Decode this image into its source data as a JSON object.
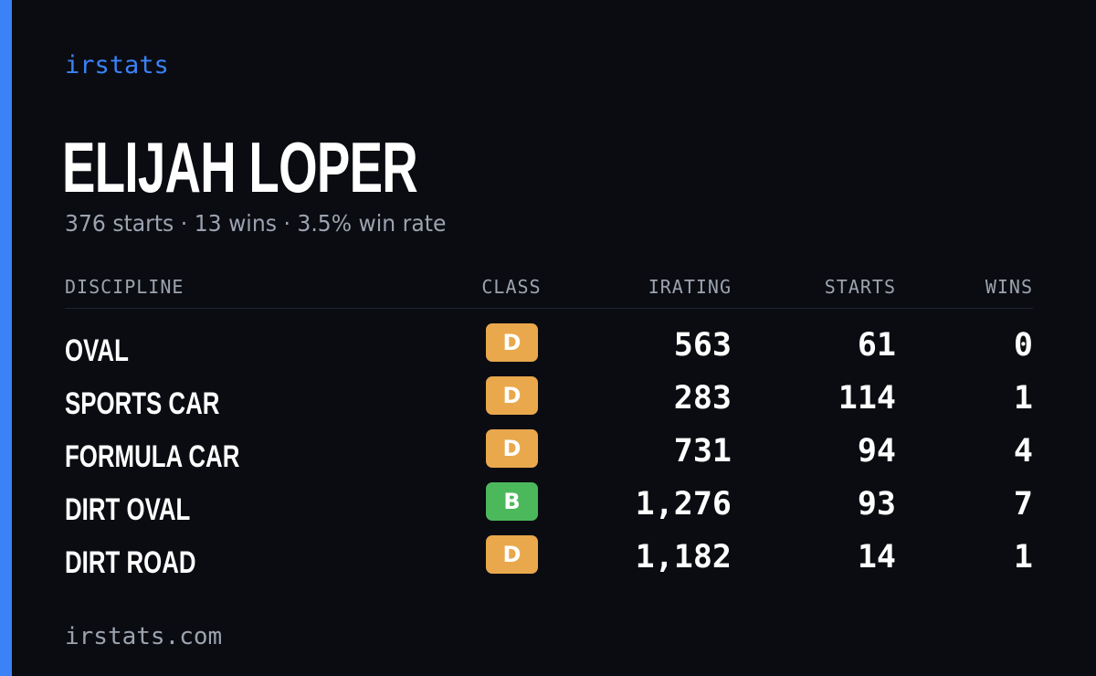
{
  "brand": "irstats",
  "driver": {
    "name": "ELIJAH LOPER",
    "summary": "376 starts · 13 wins · 3.5% win rate"
  },
  "table": {
    "headers": {
      "discipline": "DISCIPLINE",
      "class": "CLASS",
      "irating": "IRATING",
      "starts": "STARTS",
      "wins": "WINS"
    },
    "rows": [
      {
        "discipline": "OVAL",
        "class": "D",
        "class_color": "#e9a84c",
        "irating": "563",
        "starts": "61",
        "wins": "0"
      },
      {
        "discipline": "SPORTS CAR",
        "class": "D",
        "class_color": "#e9a84c",
        "irating": "283",
        "starts": "114",
        "wins": "1"
      },
      {
        "discipline": "FORMULA CAR",
        "class": "D",
        "class_color": "#e9a84c",
        "irating": "731",
        "starts": "94",
        "wins": "4"
      },
      {
        "discipline": "DIRT OVAL",
        "class": "B",
        "class_color": "#4cb85c",
        "irating": "1,276",
        "starts": "93",
        "wins": "7"
      },
      {
        "discipline": "DIRT ROAD",
        "class": "D",
        "class_color": "#e9a84c",
        "irating": "1,182",
        "starts": "14",
        "wins": "1"
      }
    ]
  },
  "footer": "irstats.com",
  "colors": {
    "accent": "#3b82f6",
    "background": "#0a0c12",
    "muted_text": "#9ca3af"
  }
}
